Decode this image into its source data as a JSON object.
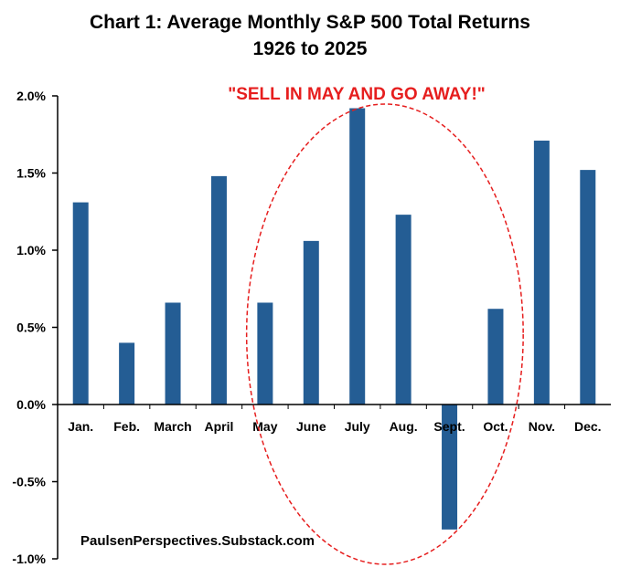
{
  "chart_data": {
    "type": "bar",
    "title_line1": "Chart 1: Average Monthly S&P 500 Total Returns",
    "title_line2": "1926 to 2025",
    "categories": [
      "Jan.",
      "Feb.",
      "March",
      "April",
      "May",
      "June",
      "July",
      "Aug.",
      "Sept.",
      "Oct.",
      "Nov.",
      "Dec."
    ],
    "values": [
      1.31,
      0.4,
      0.66,
      1.48,
      0.66,
      1.06,
      1.92,
      1.23,
      -0.81,
      0.62,
      1.71,
      1.52
    ],
    "unit": "%",
    "ylim": [
      -1.0,
      2.0
    ],
    "yticks": [
      2.0,
      1.5,
      1.0,
      0.5,
      0.0,
      -0.5,
      -1.0
    ],
    "ytick_labels": [
      "2.0%",
      "1.5%",
      "1.0%",
      "0.5%",
      "0.0%",
      "-0.5%",
      "-1.0%"
    ],
    "grid": false,
    "annotation": "\"SELL IN MAY AND GO AWAY!\"",
    "annotation_span": [
      "May",
      "Oct."
    ],
    "source": "PaulsenPerspectives.Substack.com",
    "colors": {
      "bar": "#245d94",
      "annotation": "#e61e1e",
      "axis": "#000000"
    }
  }
}
